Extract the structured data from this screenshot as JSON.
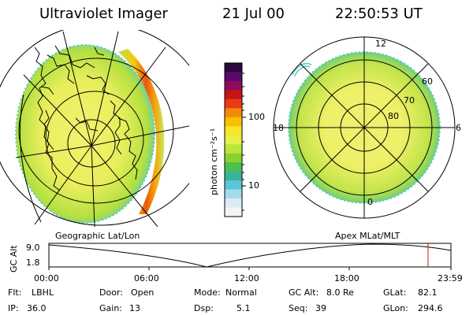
{
  "header": {
    "instrument": "Ultraviolet Imager",
    "date": "21 Jul 00",
    "time": "22:50:53 UT"
  },
  "colorbar": {
    "label": "photon cm⁻²s⁻¹",
    "ticks": [
      "100",
      "10"
    ],
    "colors": [
      "#2a0a3a",
      "#5a0a6e",
      "#900a60",
      "#c81414",
      "#e83c14",
      "#f58a0a",
      "#f8c000",
      "#f6e628",
      "#e6f048",
      "#bce63a",
      "#88d230",
      "#4cc04a",
      "#38b49a",
      "#58c8d6",
      "#a4dcec",
      "#dcecf4",
      "#f4f4f4"
    ]
  },
  "left_map": {
    "label": "Geographic Lat/Lon",
    "colors": {
      "outer": "#c8e85a",
      "inner": "#eef06a",
      "edge": "#58c8c8",
      "arc_red": "#e8580a",
      "arc_orange": "#f6a40a"
    }
  },
  "right_map": {
    "label": "Apex MLat/MLT",
    "lat_labels": [
      "60",
      "70",
      "80"
    ],
    "mlt_labels": [
      "12",
      "18",
      "6",
      "0"
    ]
  },
  "timeline": {
    "ylabel": "GC Alt",
    "yticks": [
      "9.0",
      "1.8"
    ],
    "xticks": [
      "00:00",
      "06:00",
      "12:00",
      "18:00",
      "23:59"
    ],
    "marker_color": "#c81414"
  },
  "info": {
    "filter_label": "Flt:",
    "filter_value": "LBHL",
    "ip_label": "IP:",
    "ip_value": "36.0",
    "door_label": "Door:",
    "door_value": "Open",
    "gain_label": "Gain:",
    "gain_value": "13",
    "mode_label": "Mode:",
    "mode_value": "Normal",
    "dsp_label": "Dsp:",
    "dsp_value": "5.1",
    "gcalt_label": "GC Alt:",
    "gcalt_value": "8.0 Re",
    "seq_label": "Seq:",
    "seq_value": "39",
    "glat_label": "GLat:",
    "glat_value": "82.1",
    "glon_label": "GLon:",
    "glon_value": "294.6"
  }
}
